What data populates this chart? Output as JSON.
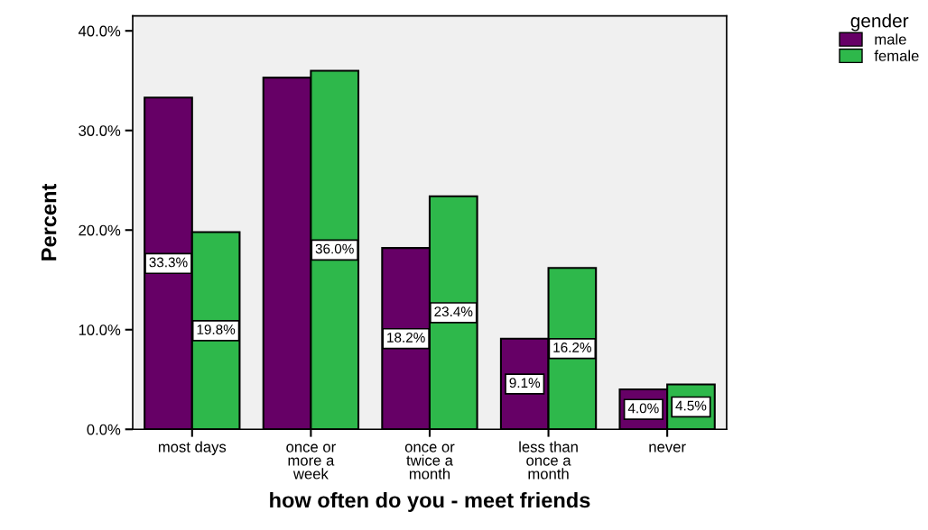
{
  "chart_data": {
    "type": "bar",
    "xlabel": "how often do you - meet friends",
    "ylabel": "Percent",
    "legend_title": "gender",
    "legend": "top right",
    "categories": [
      "most days",
      "once or\nmore a\nweek",
      "once or\ntwice a\nmonth",
      "less than\nonce a\nmonth",
      "never"
    ],
    "series": [
      {
        "name": "male",
        "color": "#660066",
        "values": [
          33.3,
          35.3,
          18.2,
          9.1,
          4.0
        ],
        "value_labels": [
          "33.3%",
          null,
          "18.2%",
          "9.1%",
          "4.0%"
        ]
      },
      {
        "name": "female",
        "color": "#2eb84b",
        "values": [
          19.8,
          36.0,
          23.4,
          16.2,
          4.5
        ],
        "value_labels": [
          "19.8%",
          "36.0%",
          "23.4%",
          "16.2%",
          "4.5%"
        ]
      }
    ],
    "ylim": [
      0,
      41.5
    ],
    "yticks": [
      {
        "value": 0,
        "label": "0.0%"
      },
      {
        "value": 10,
        "label": "10.0%"
      },
      {
        "value": 20,
        "label": "20.0%"
      },
      {
        "value": 30,
        "label": "30.0%"
      },
      {
        "value": 40,
        "label": "40.0%"
      }
    ],
    "grid": false
  }
}
